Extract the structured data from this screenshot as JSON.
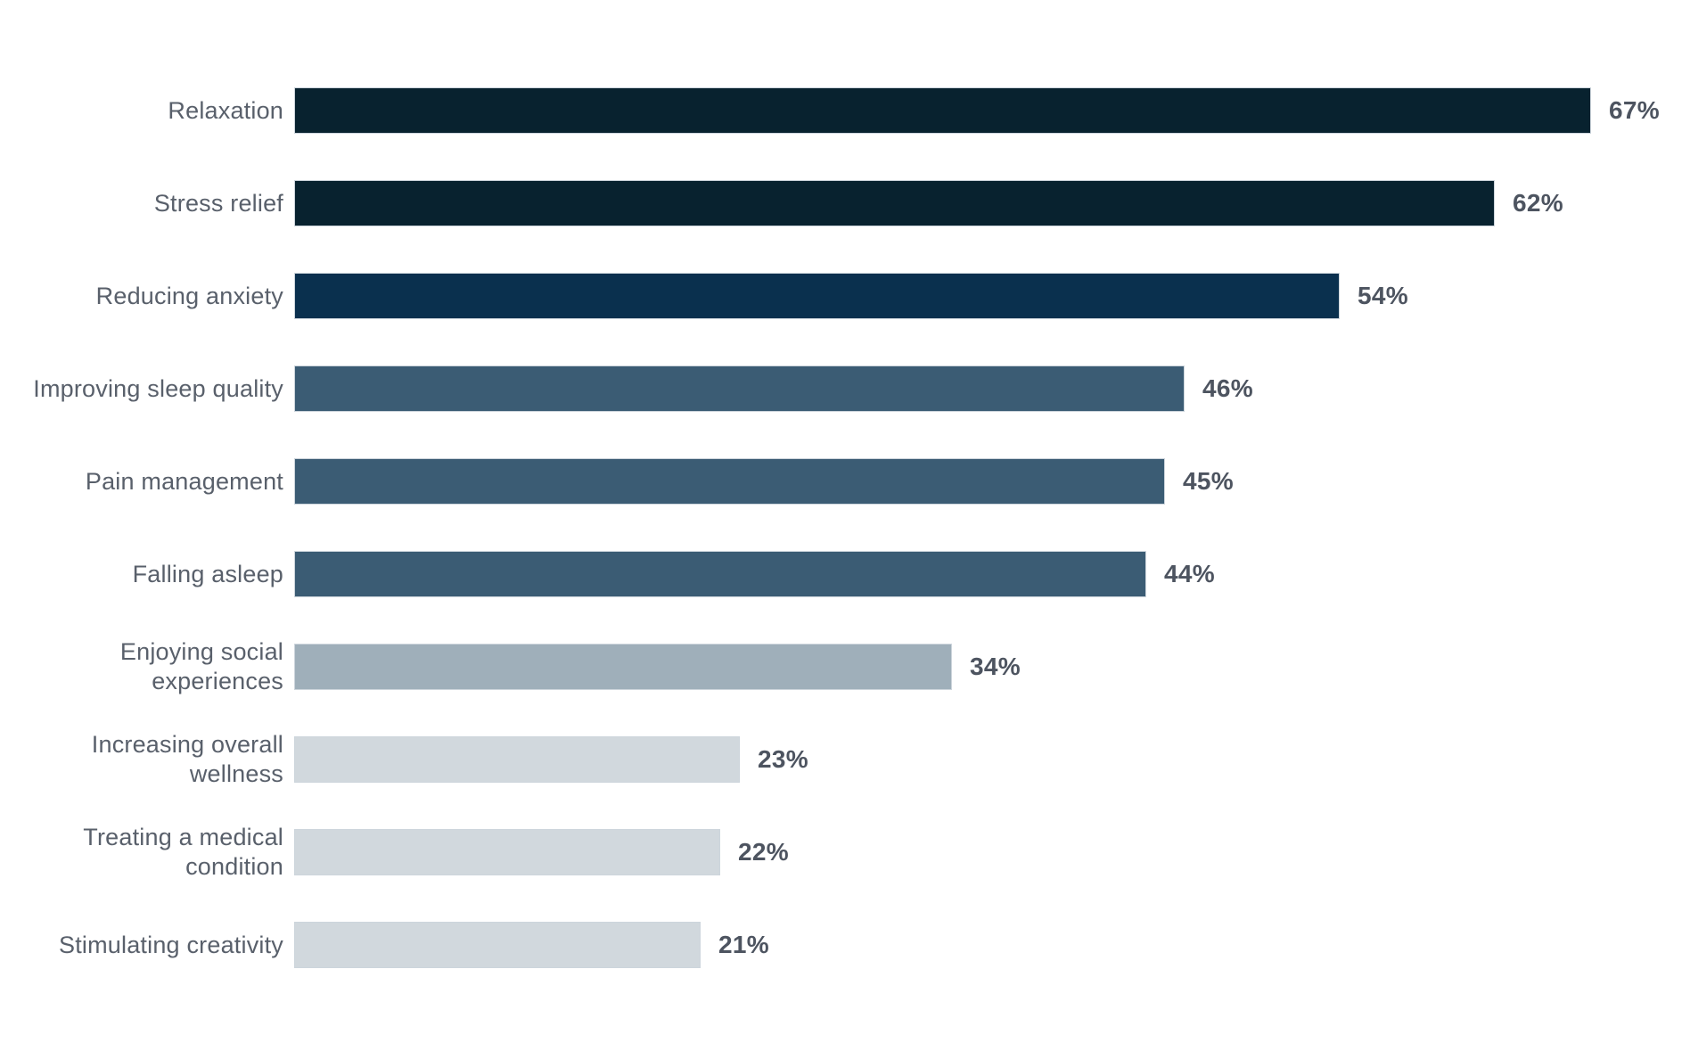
{
  "chart_data": {
    "type": "bar",
    "orientation": "horizontal",
    "title": "",
    "xlabel": "",
    "ylabel": "",
    "xlim": [
      0,
      71.5
    ],
    "grid": false,
    "value_suffix": "%",
    "categories": [
      "Relaxation",
      "Stress relief",
      "Reducing anxiety",
      "Improving sleep quality",
      "Pain management",
      "Falling asleep",
      "Enjoying social\nexperiences",
      "Increasing overall\nwellness",
      "Treating a medical\ncondition",
      "Stimulating creativity"
    ],
    "values": [
      67,
      62,
      54,
      46,
      45,
      44,
      34,
      23,
      22,
      21
    ],
    "value_labels": [
      "67%",
      "62%",
      "54%",
      "46%",
      "45%",
      "44%",
      "34%",
      "23%",
      "22%",
      "21%"
    ],
    "bar_colors": [
      "#08222f",
      "#08222f",
      "#0a304e",
      "#3b5c74",
      "#3b5c74",
      "#3b5c74",
      "#9fafba",
      "#d1d8dd",
      "#d1d8dd",
      "#d1d8dd"
    ],
    "label_color": "#59606b",
    "value_color": "#4d5460",
    "background_color": "#ffffff"
  }
}
